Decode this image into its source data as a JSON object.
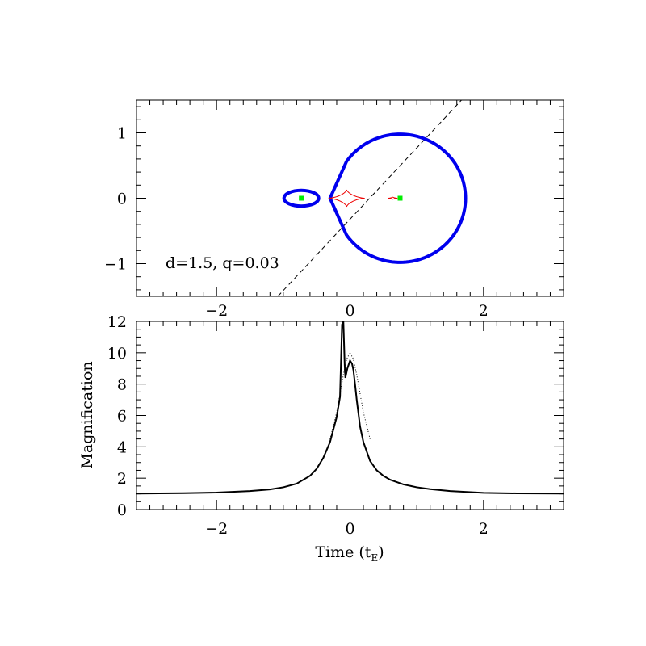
{
  "chart_data": [
    {
      "type": "scatter",
      "panel": "caustic",
      "annotation": "d=1.5,  q=0.03",
      "xlim": [
        -3.2,
        3.2
      ],
      "ylim": [
        -1.5,
        1.5
      ],
      "x_ticks": [
        -2,
        0,
        2
      ],
      "x_tick_labels": [
        "−2",
        "0",
        "2"
      ],
      "y_ticks": [
        -1,
        0,
        1
      ],
      "y_tick_labels": [
        "−1",
        "0",
        "1"
      ],
      "x_tick_labels_position": "bottom",
      "grid": false,
      "colors": {
        "critical_curve": "#0000ee",
        "caustic": "#ee0000",
        "lens": "#00ee00",
        "trajectory": "#000000"
      },
      "lens_positions": [
        {
          "x": -0.73,
          "y": 0.0
        },
        {
          "x": 0.75,
          "y": 0.0
        }
      ],
      "critical_curves": {
        "big_loop": {
          "center": [
            0.75,
            0.0
          ],
          "radius": 0.98,
          "cusp_x": -0.3
        },
        "small_loop": {
          "center": [
            -0.73,
            0.0
          ],
          "half_width": 0.26,
          "half_height": 0.12
        }
      },
      "caustics": {
        "central": {
          "center": [
            -0.05,
            0.0
          ],
          "half_width": 0.27,
          "half_height": 0.13
        },
        "planetary": {
          "center": [
            0.64,
            0.0
          ],
          "half_width": 0.07,
          "half_height": 0.02
        }
      },
      "trajectory": {
        "style": "dashed",
        "slope": 1.09,
        "y_intercept": -0.32
      }
    },
    {
      "type": "line",
      "panel": "light_curve",
      "xlabel": "Time (t",
      "xlabel_subscript": "E",
      "xlabel_close": ")",
      "ylabel": "Magnification",
      "xlim": [
        -3.2,
        3.2
      ],
      "ylim": [
        0,
        12
      ],
      "x_ticks": [
        -2,
        0,
        2
      ],
      "x_tick_labels": [
        "−2",
        "0",
        "2"
      ],
      "y_ticks": [
        0,
        2,
        4,
        6,
        8,
        10,
        12
      ],
      "y_tick_labels": [
        "0",
        "2",
        "4",
        "6",
        "8",
        "10",
        "12"
      ],
      "grid": false,
      "series": [
        {
          "style": "solid",
          "x": [
            -3.2,
            -2.5,
            -2.0,
            -1.5,
            -1.2,
            -1.0,
            -0.8,
            -0.6,
            -0.5,
            -0.4,
            -0.3,
            -0.2,
            -0.15,
            -0.12,
            -0.1,
            -0.08,
            -0.07,
            -0.06,
            -0.04,
            0.0,
            0.03,
            0.05,
            0.08,
            0.1,
            0.15,
            0.2,
            0.3,
            0.4,
            0.5,
            0.6,
            0.8,
            1.0,
            1.2,
            1.5,
            2.0,
            2.5,
            3.2
          ],
          "values": [
            1.02,
            1.04,
            1.08,
            1.18,
            1.28,
            1.42,
            1.65,
            2.15,
            2.6,
            3.3,
            4.3,
            5.9,
            7.2,
            11.8,
            12.0,
            9.2,
            8.4,
            8.6,
            9.0,
            9.5,
            9.3,
            8.9,
            7.8,
            7.0,
            5.3,
            4.3,
            3.1,
            2.5,
            2.15,
            1.9,
            1.6,
            1.42,
            1.3,
            1.18,
            1.06,
            1.03,
            1.02
          ]
        },
        {
          "style": "dotted",
          "x": [
            -0.3,
            -0.2,
            -0.1,
            -0.05,
            0.0,
            0.05,
            0.1,
            0.2,
            0.3
          ],
          "values": [
            4.5,
            6.2,
            8.6,
            9.6,
            10.0,
            9.6,
            8.6,
            6.2,
            4.5
          ]
        }
      ]
    }
  ]
}
